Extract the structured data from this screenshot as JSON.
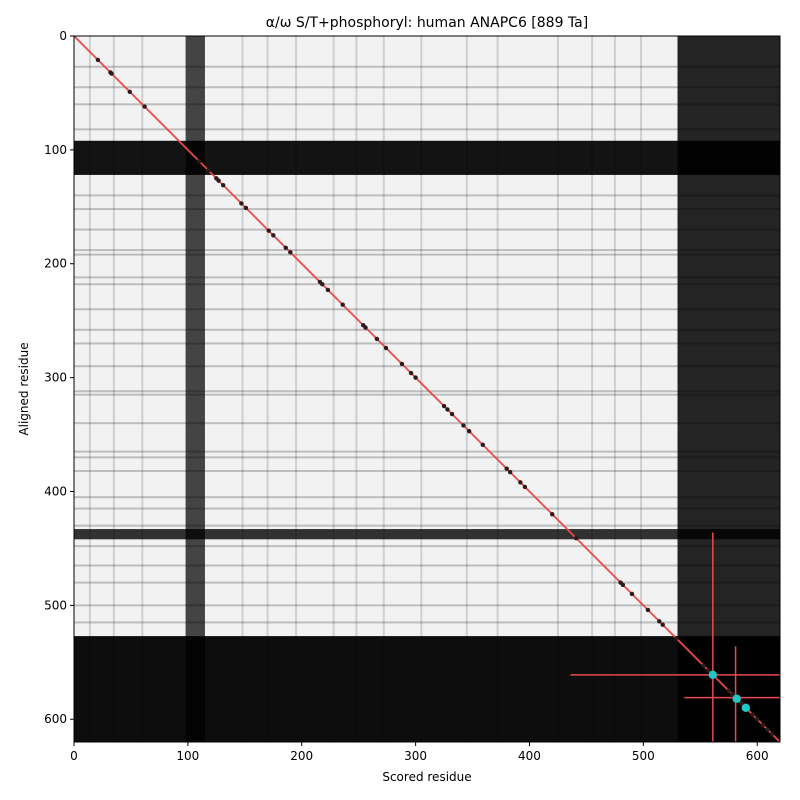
{
  "chart_data": {
    "type": "heatmap",
    "title": "α/ω S/T+phosphoryl: human ANAPC6 [889 Ta]",
    "xlabel": "Scored residue",
    "ylabel": "Aligned residue",
    "xlim": [
      0,
      620
    ],
    "ylim": [
      620,
      0
    ],
    "x_ticks": [
      0,
      100,
      200,
      300,
      400,
      500,
      600
    ],
    "y_ticks": [
      0,
      100,
      200,
      300,
      400,
      500,
      600
    ],
    "colormap": "grayscale",
    "diagonal_color": "#e84a4a",
    "phospho_site_color": "#2e1a1a",
    "highlight_color": "#22c7c7",
    "dark_columns": [
      {
        "from": 98,
        "to": 115,
        "level": 0.72
      },
      {
        "from": 530,
        "to": 620,
        "level": 0.85
      }
    ],
    "dark_rows": [
      {
        "from": 92,
        "to": 122,
        "level": 0.92
      },
      {
        "from": 433,
        "to": 442,
        "level": 0.8
      },
      {
        "from": 527,
        "to": 620,
        "level": 0.95
      }
    ],
    "faint_rows": [
      27,
      45,
      60,
      82,
      140,
      152,
      170,
      188,
      192,
      212,
      218,
      240,
      258,
      270,
      290,
      312,
      315,
      340,
      365,
      370,
      382,
      405,
      415,
      430,
      448,
      465,
      480,
      500,
      515
    ],
    "faint_columns": [
      14,
      35,
      60,
      148,
      170,
      195,
      228,
      248,
      272,
      305,
      345,
      372,
      425,
      455,
      475,
      498
    ],
    "phospho_sites": [
      21,
      32,
      33,
      49,
      62,
      110,
      118,
      125,
      127,
      131,
      147,
      151,
      171,
      175,
      186,
      190,
      216,
      218,
      223,
      236,
      254,
      256,
      266,
      274,
      288,
      296,
      300,
      325,
      328,
      332,
      342,
      347,
      359,
      380,
      383,
      392,
      396,
      420,
      441,
      480,
      482,
      490,
      504,
      514,
      517,
      529,
      553,
      557,
      561,
      575,
      578,
      580,
      582,
      586,
      588,
      590,
      596,
      600,
      605,
      609,
      613
    ],
    "highlight_sites": [
      561,
      582,
      590
    ],
    "crosshairs": [
      {
        "x": 561,
        "y": 561,
        "extent": 125
      },
      {
        "x": 581,
        "y": 581,
        "extent": 45
      }
    ]
  }
}
